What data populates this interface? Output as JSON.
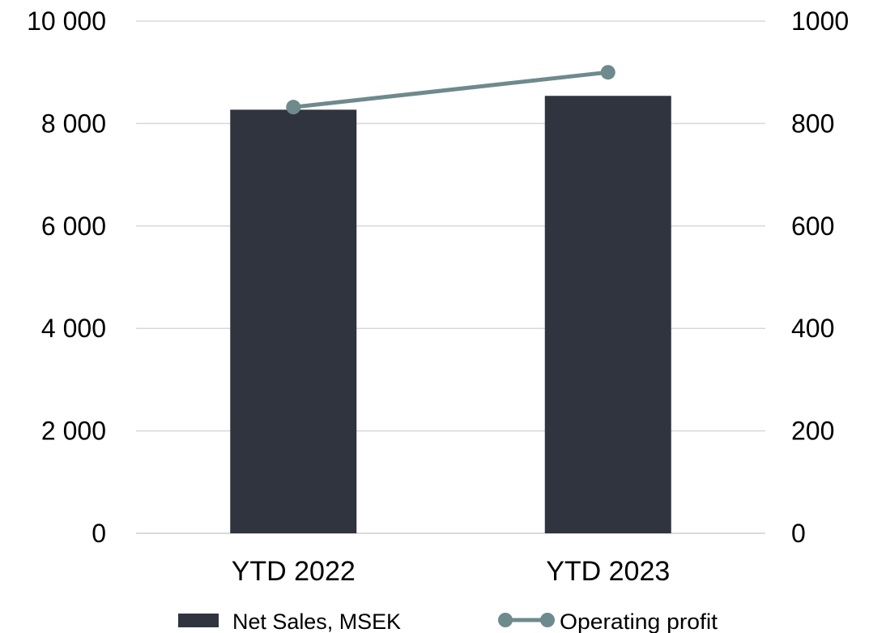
{
  "chart_data": {
    "type": "bar",
    "title": "",
    "categories": [
      "YTD 2022",
      "YTD 2023"
    ],
    "series": [
      {
        "name": "Net Sales, MSEK",
        "type": "bar",
        "axis": "left",
        "values": [
          8270,
          8540
        ],
        "color": "#30343e"
      },
      {
        "name": "Operating profit",
        "type": "line",
        "axis": "right",
        "values": [
          832,
          900
        ],
        "color": "#6e8a8c"
      }
    ],
    "y_left": {
      "range": [
        0,
        10000
      ],
      "ticks": [
        0,
        2000,
        4000,
        6000,
        8000,
        10000
      ],
      "tick_labels": [
        "0",
        "2 000",
        "4 000",
        "6 000",
        "8 000",
        "10 000"
      ]
    },
    "y_right": {
      "range": [
        0,
        1000
      ],
      "ticks": [
        0,
        200,
        400,
        600,
        800,
        1000
      ],
      "tick_labels": [
        "0",
        "200",
        "400",
        "600",
        "800",
        "1000"
      ]
    },
    "grid": true,
    "grid_color": "#d9d9d9",
    "legend_position": "bottom"
  }
}
